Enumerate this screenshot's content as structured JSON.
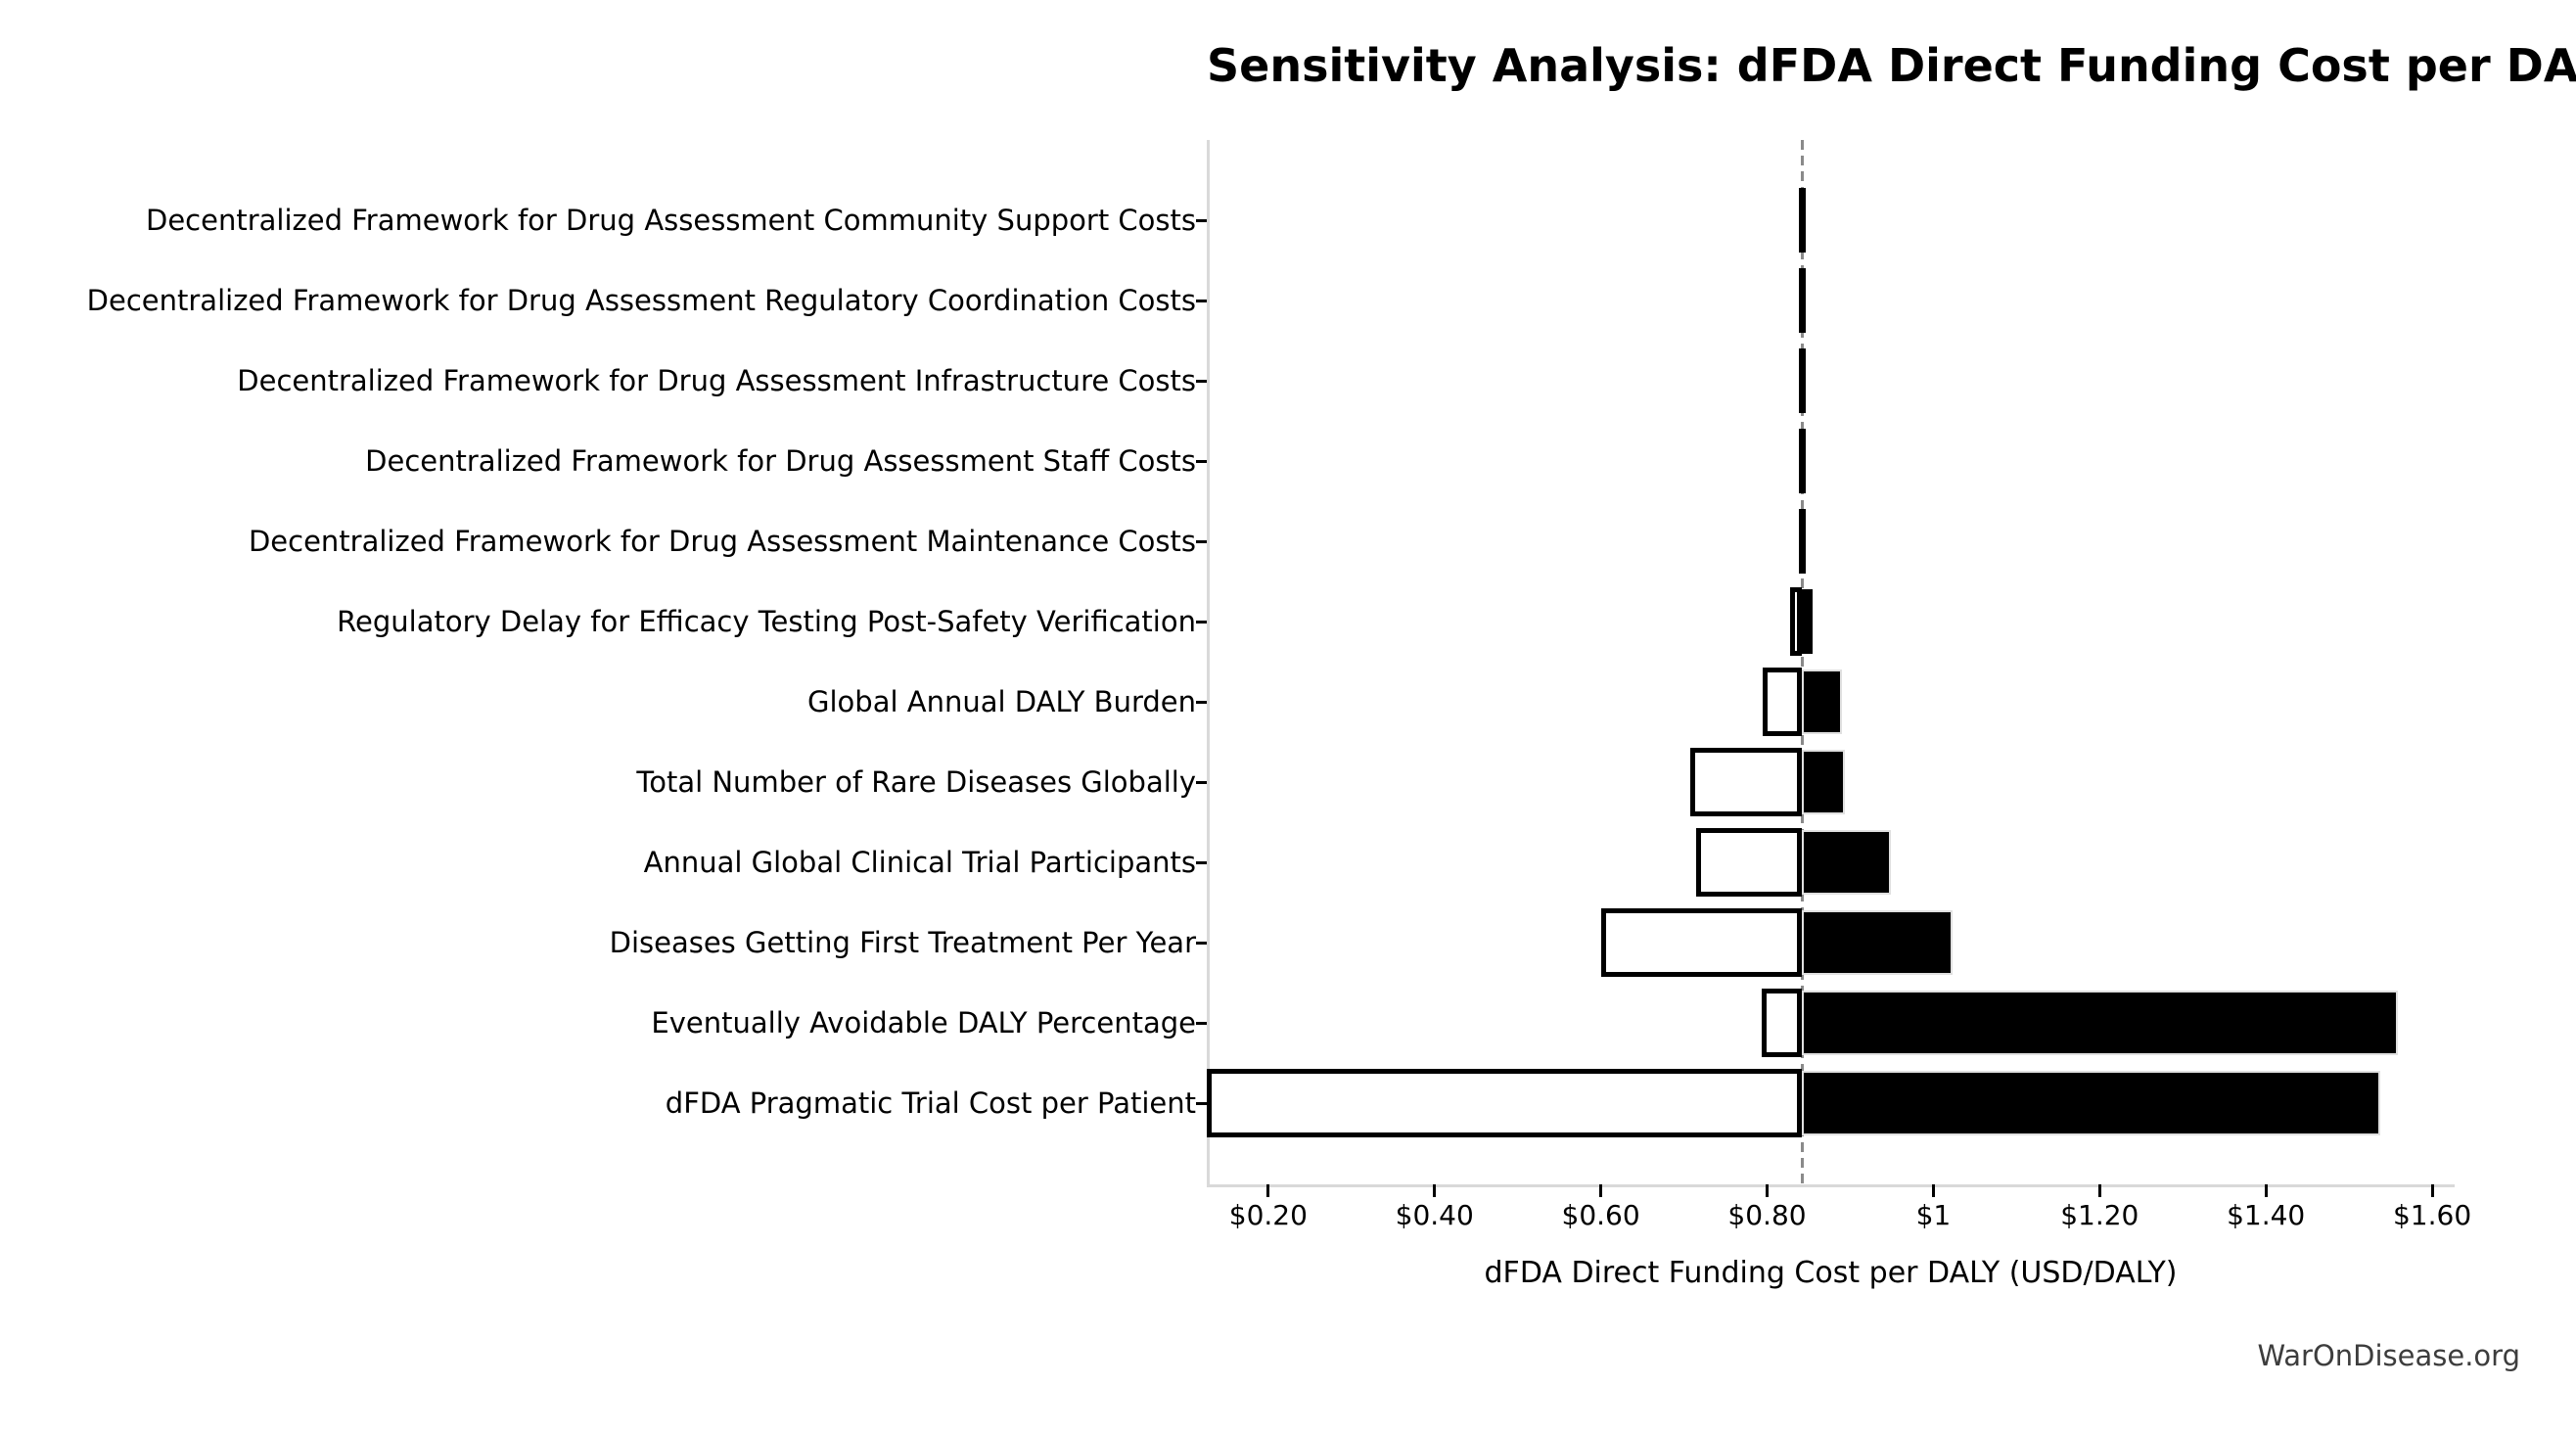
{
  "chart_data": {
    "type": "bar",
    "variant": "tornado-sensitivity",
    "orientation": "horizontal",
    "title": "Sensitivity Analysis: dFDA Direct Funding Cost per DALY",
    "xlabel": "dFDA Direct Funding Cost per DALY (USD/DALY)",
    "watermark": "WarOnDisease.org",
    "baseline_value": 0.842,
    "xlim": [
      0.126,
      1.627
    ],
    "grid": false,
    "legend": "none",
    "xticks": [
      {
        "value": 0.2,
        "label": "$0.20"
      },
      {
        "value": 0.4,
        "label": "$0.40"
      },
      {
        "value": 0.6,
        "label": "$0.60"
      },
      {
        "value": 0.8,
        "label": "$0.80"
      },
      {
        "value": 1.0,
        "label": "$1"
      },
      {
        "value": 1.2,
        "label": "$1.20"
      },
      {
        "value": 1.4,
        "label": "$1.40"
      },
      {
        "value": 1.6,
        "label": "$1.60"
      }
    ],
    "categories": [
      "Decentralized Framework for Drug Assessment Community Support Costs",
      "Decentralized Framework for Drug Assessment Regulatory Coordination Costs",
      "Decentralized Framework for Drug Assessment Infrastructure Costs",
      "Decentralized Framework for Drug Assessment Staff Costs",
      "Decentralized Framework for Drug Assessment Maintenance Costs",
      "Regulatory Delay for Efficacy Testing Post-Safety Verification",
      "Global Annual DALY Burden",
      "Total Number of Rare Diseases Globally",
      "Annual Global Clinical Trial Participants",
      "Diseases Getting First Treatment Per Year",
      "Eventually Avoidable DALY Percentage",
      "dFDA Pragmatic Trial Cost per Patient"
    ],
    "series": [
      {
        "name": "low",
        "bar_style": "white-filled-black-border",
        "values": [
          0.838,
          0.838,
          0.838,
          0.838,
          0.838,
          0.828,
          0.795,
          0.708,
          0.715,
          0.601,
          0.793,
          0.126
        ]
      },
      {
        "name": "high",
        "bar_style": "black-filled",
        "values": [
          0.846,
          0.846,
          0.846,
          0.846,
          0.846,
          0.855,
          0.89,
          0.894,
          0.949,
          1.023,
          1.559,
          1.537
        ]
      }
    ],
    "notes": "Low end of 'dFDA Pragmatic Trial Cost per Patient' bar is clipped at the left axis limit; dashed vertical line marks baseline ~$0.84/DALY",
    "colors": {
      "high_bar_fill": "#000000",
      "low_bar_fill": "#ffffff",
      "low_bar_border": "#000000",
      "high_bar_border": "#e0e0e0",
      "baseline_line": "#8a8a8a",
      "spine": "#d9d9d9",
      "watermark_text": "#3d3d3d",
      "background": "#ffffff"
    }
  }
}
